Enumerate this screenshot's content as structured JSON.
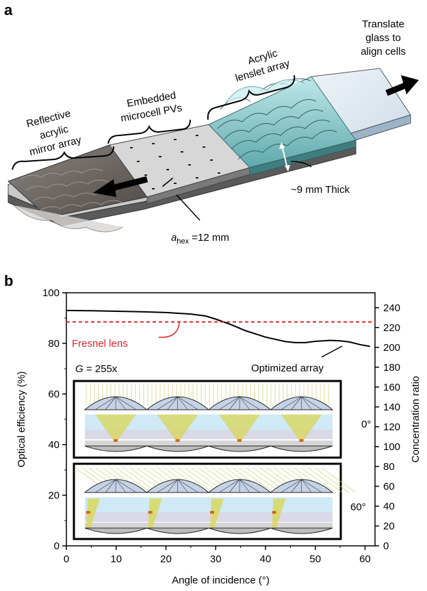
{
  "panel_a": {
    "label": "a",
    "labels": {
      "translate": [
        "Translate",
        "glass to",
        "align cells"
      ],
      "lenslet": [
        "Acrylic",
        "lenslet array"
      ],
      "microcell": [
        "Embedded",
        "microcell PVs"
      ],
      "mirror": [
        "Reflective",
        "acrylic",
        "mirror array"
      ],
      "thickness": "~9 mm Thick",
      "ahex_main": "a",
      "ahex_sub": "hex",
      "ahex_value": " =12 mm"
    }
  },
  "panel_b": {
    "label": "b",
    "fresnel_label": "Fresnel lens",
    "optimized_label": "Optimized array",
    "g_label": "G",
    "g_value": " = 255x",
    "inset_top_angle": "0°",
    "inset_bottom_angle": "60°"
  },
  "chart_data": {
    "type": "line",
    "xlabel": "Angle of incidence (°)",
    "ylabel": "Optical efficiency (%)",
    "y2label": "Concentration ratio",
    "xlim": [
      0,
      62
    ],
    "ylim": [
      0,
      100
    ],
    "y2lim": [
      0,
      255
    ],
    "xticks": [
      "0",
      "10",
      "20",
      "30",
      "40",
      "50",
      "60"
    ],
    "yticks": [
      "0",
      "20",
      "40",
      "60",
      "80",
      "100"
    ],
    "y2ticks": [
      "0",
      "20",
      "40",
      "60",
      "80",
      "100",
      "120",
      "140",
      "160",
      "180",
      "200",
      "220",
      "240"
    ],
    "series": [
      {
        "name": "Optimized array",
        "color": "#000000",
        "x": [
          0,
          5,
          10,
          15,
          20,
          25,
          28,
          30,
          33,
          36,
          40,
          44,
          46,
          48,
          50,
          53,
          55,
          57,
          59,
          61
        ],
        "y": [
          93,
          92.9,
          92.7,
          92.5,
          92.2,
          91.6,
          90.8,
          89.6,
          87.5,
          85,
          82.5,
          80.7,
          80.3,
          80.3,
          80.8,
          81.2,
          81,
          80.5,
          79.5,
          78.8
        ]
      },
      {
        "name": "Fresnel lens",
        "color": "#d62728",
        "style": "dashed",
        "x": [
          0,
          62
        ],
        "y": [
          88.5,
          88.5
        ]
      }
    ],
    "grid": false
  },
  "colors": {
    "fresnel": "#d62728",
    "lenslet": "#8fd3d6",
    "mirror": "#6b6661",
    "glass": "#e4eef5"
  }
}
